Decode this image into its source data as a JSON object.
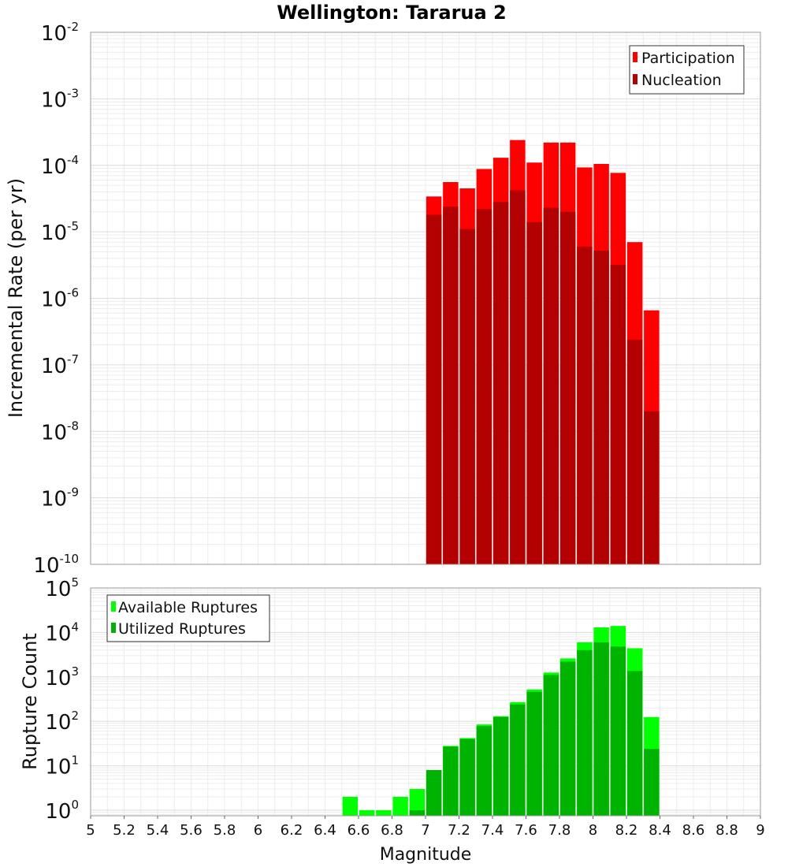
{
  "chart_data": [
    {
      "type": "bar",
      "title": "Wellington: Tararua 2",
      "ylabel": "Incremental Rate (per yr)",
      "xlabel": "",
      "y_scale": "log",
      "ylim": [
        1e-10,
        0.01
      ],
      "xlim": [
        5,
        9
      ],
      "y_tick_labels": [
        {
          "base": "10",
          "exp": "-10"
        },
        {
          "base": "10",
          "exp": "-9"
        },
        {
          "base": "10",
          "exp": "-8"
        },
        {
          "base": "10",
          "exp": "-7"
        },
        {
          "base": "10",
          "exp": "-6"
        },
        {
          "base": "10",
          "exp": "-5"
        },
        {
          "base": "10",
          "exp": "-4"
        },
        {
          "base": "10",
          "exp": "-3"
        },
        {
          "base": "10",
          "exp": "-2"
        }
      ],
      "grid": true,
      "legend_position": "top-right",
      "x": [
        7.05,
        7.15,
        7.25,
        7.35,
        7.45,
        7.55,
        7.65,
        7.75,
        7.85,
        7.95,
        8.05,
        8.15,
        8.25,
        8.35
      ],
      "series": [
        {
          "name": "Participation",
          "color": "#ff0000",
          "values": [
            3.4e-05,
            5.6e-05,
            4.5e-05,
            8.8e-05,
            0.00013,
            0.00024,
            0.00011,
            0.00022,
            0.00022,
            9.3e-05,
            0.000105,
            7.7e-05,
            7e-06,
            6.6e-07
          ]
        },
        {
          "name": "Nucleation",
          "color": "#b30000",
          "values": [
            1.8e-05,
            2.4e-05,
            1.1e-05,
            2.2e-05,
            2.8e-05,
            4.2e-05,
            1.4e-05,
            2.3e-05,
            2e-05,
            6e-06,
            5.2e-06,
            3.2e-06,
            2.4e-07,
            2e-08
          ]
        }
      ]
    },
    {
      "type": "bar",
      "title": "",
      "ylabel": "Rupture Count",
      "xlabel": "Magnitude",
      "y_scale": "log",
      "ylim": [
        0.75,
        100000.0
      ],
      "xlim": [
        5,
        9
      ],
      "x_tick_labels": [
        "5",
        "5.2",
        "5.4",
        "5.6",
        "5.8",
        "6",
        "6.2",
        "6.4",
        "6.6",
        "6.8",
        "7",
        "7.2",
        "7.4",
        "7.6",
        "7.8",
        "8",
        "8.2",
        "8.4",
        "8.6",
        "8.8",
        "9"
      ],
      "y_tick_labels": [
        {
          "base": "10",
          "exp": "0"
        },
        {
          "base": "10",
          "exp": "1"
        },
        {
          "base": "10",
          "exp": "2"
        },
        {
          "base": "10",
          "exp": "3"
        },
        {
          "base": "10",
          "exp": "4"
        },
        {
          "base": "10",
          "exp": "5"
        }
      ],
      "grid": true,
      "legend_position": "top-left",
      "x": [
        6.55,
        6.65,
        6.75,
        6.85,
        6.95,
        7.05,
        7.15,
        7.25,
        7.35,
        7.45,
        7.55,
        7.65,
        7.75,
        7.85,
        7.95,
        8.05,
        8.15,
        8.25,
        8.35
      ],
      "series": [
        {
          "name": "Available Ruptures",
          "color": "#00ff00",
          "values": [
            2,
            1,
            1,
            2,
            3,
            8,
            28,
            42,
            85,
            130,
            270,
            520,
            1250,
            2600,
            6000,
            13000,
            14000,
            4400,
            125
          ]
        },
        {
          "name": "Utilized Ruptures",
          "color": "#00b300",
          "values": [
            null,
            null,
            null,
            null,
            1,
            8,
            27,
            40,
            78,
            125,
            240,
            460,
            1100,
            2200,
            4000,
            6000,
            4800,
            1350,
            24
          ]
        }
      ]
    }
  ]
}
